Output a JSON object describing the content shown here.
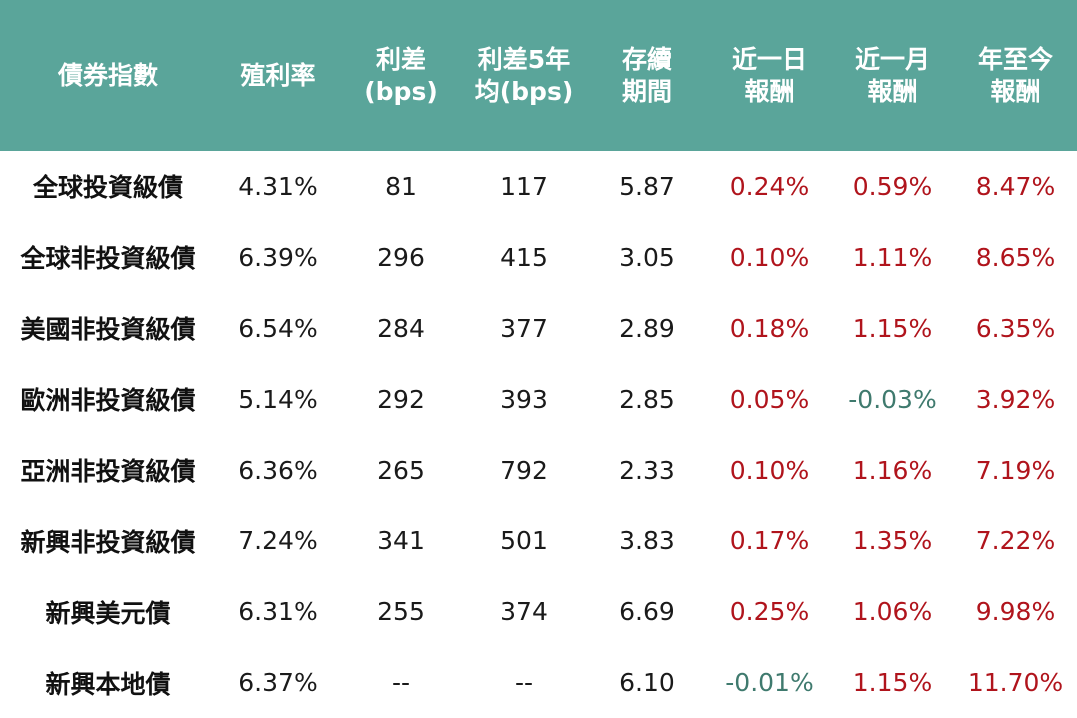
{
  "chart_data": {
    "type": "table",
    "columns": [
      [
        "債券指數"
      ],
      [
        "殖利率"
      ],
      [
        "利差",
        "(bps)"
      ],
      [
        "利差5年",
        "均(bps)"
      ],
      [
        "存續",
        "期間"
      ],
      [
        "近一日",
        "報酬"
      ],
      [
        "近一月",
        "報酬"
      ],
      [
        "年至今",
        "報酬"
      ]
    ],
    "rows": [
      [
        "全球投資級債",
        "4.31%",
        "81",
        "117",
        "5.87",
        "0.24%",
        "0.59%",
        "8.47%"
      ],
      [
        "全球非投資級債",
        "6.39%",
        "296",
        "415",
        "3.05",
        "0.10%",
        "1.11%",
        "8.65%"
      ],
      [
        "美國非投資級債",
        "6.54%",
        "284",
        "377",
        "2.89",
        "0.18%",
        "1.15%",
        "6.35%"
      ],
      [
        "歐洲非投資級債",
        "5.14%",
        "292",
        "393",
        "2.85",
        "0.05%",
        "-0.03%",
        "3.92%"
      ],
      [
        "亞洲非投資級債",
        "6.36%",
        "265",
        "792",
        "2.33",
        "0.10%",
        "1.16%",
        "7.19%"
      ],
      [
        "新興非投資級債",
        "7.24%",
        "341",
        "501",
        "3.83",
        "0.17%",
        "1.35%",
        "7.22%"
      ],
      [
        "新興美元債",
        "6.31%",
        "255",
        "374",
        "6.69",
        "0.25%",
        "1.06%",
        "9.98%"
      ],
      [
        "新興本地債",
        "6.37%",
        "--",
        "--",
        "6.10",
        "-0.01%",
        "1.15%",
        "11.70%"
      ]
    ],
    "colors": {
      "header_bg": "#5aa59a",
      "header_text": "#ffffff",
      "positive_return": "#b0141c",
      "negative_return": "#3f7a6e"
    }
  }
}
